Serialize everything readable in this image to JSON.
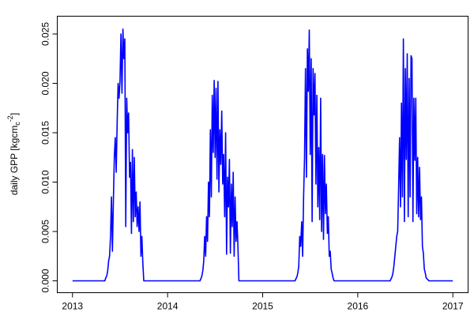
{
  "chart_data": {
    "type": "line",
    "title": "",
    "xlabel": "",
    "ylabel": "daily GPP [kgcm",
    "ylabel_sub": "c",
    "ylabel_exp": "-2",
    "ylabel_close": "]",
    "xlim": [
      2012.84,
      2017.16
    ],
    "ylim": [
      -0.0012,
      0.0268
    ],
    "x_ticks": [
      2013,
      2014,
      2015,
      2016,
      2017
    ],
    "x_tick_labels": [
      "2013",
      "2014",
      "2015",
      "2016",
      "2017"
    ],
    "y_ticks": [
      0,
      0.005,
      0.01,
      0.015,
      0.02,
      0.025
    ],
    "y_tick_labels": [
      "0.000",
      "0.005",
      "0.010",
      "0.015",
      "0.020",
      "0.025"
    ],
    "grid": false,
    "line_color": "#0000ff",
    "series": [
      {
        "seasons": [
          {
            "year": 2013,
            "x": [
              2013.34,
              2013.35,
              2013.36,
              2013.37,
              2013.38,
              2013.39,
              2013.4,
              2013.41,
              2013.42,
              2013.43,
              2013.44,
              2013.45,
              2013.46,
              2013.47,
              2013.48,
              2013.49,
              2013.5,
              2013.51,
              2013.52,
              2013.53,
              2013.54,
              2013.55,
              2013.56,
              2013.57,
              2013.58,
              2013.59,
              2013.6,
              2013.61,
              2013.62,
              2013.63,
              2013.64,
              2013.65,
              2013.66,
              2013.67,
              2013.68,
              2013.69,
              2013.7,
              2013.71,
              2013.72,
              2013.73,
              2013.74,
              2013.75
            ],
            "y": [
              0,
              0.0003,
              0.0005,
              0.001,
              0.002,
              0.0025,
              0.0045,
              0.0085,
              0.003,
              0.008,
              0.0125,
              0.0145,
              0.011,
              0.016,
              0.02,
              0.0185,
              0.0202,
              0.025,
              0.019,
              0.0255,
              0.0225,
              0.0245,
              0.0055,
              0.0185,
              0.015,
              0.017,
              0.0105,
              0.012,
              0.0048,
              0.0133,
              0.006,
              0.0125,
              0.0065,
              0.009,
              0.0055,
              0.0075,
              0.005,
              0.008,
              0.0025,
              0.0045,
              0.0018,
              0
            ]
          },
          {
            "year": 2014,
            "x": [
              2014.34,
              2014.35,
              2014.36,
              2014.37,
              2014.38,
              2014.39,
              2014.4,
              2014.41,
              2014.42,
              2014.43,
              2014.44,
              2014.45,
              2014.46,
              2014.47,
              2014.48,
              2014.49,
              2014.5,
              2014.51,
              2014.52,
              2014.53,
              2014.54,
              2014.55,
              2014.56,
              2014.57,
              2014.58,
              2014.59,
              2014.6,
              2014.61,
              2014.62,
              2014.63,
              2014.64,
              2014.65,
              2014.66,
              2014.67,
              2014.68,
              2014.69,
              2014.7,
              2014.71,
              2014.72,
              2014.73,
              2014.74,
              2014.75
            ],
            "y": [
              0,
              0.0002,
              0.0005,
              0.001,
              0.002,
              0.0045,
              0.0025,
              0.0065,
              0.004,
              0.01,
              0.0065,
              0.0153,
              0.0085,
              0.0188,
              0.013,
              0.0203,
              0.0125,
              0.0195,
              0.0103,
              0.0202,
              0.009,
              0.0153,
              0.0118,
              0.0172,
              0.0098,
              0.0128,
              0.0065,
              0.015,
              0.0027,
              0.0105,
              0.0075,
              0.0123,
              0.0028,
              0.0098,
              0.0055,
              0.011,
              0.0025,
              0.0085,
              0.004,
              0.006,
              0.0035,
              0
            ]
          },
          {
            "year": 2015,
            "x": [
              2015.34,
              2015.35,
              2015.36,
              2015.37,
              2015.38,
              2015.39,
              2015.4,
              2015.41,
              2015.42,
              2015.43,
              2015.44,
              2015.45,
              2015.46,
              2015.47,
              2015.48,
              2015.49,
              2015.5,
              2015.51,
              2015.52,
              2015.53,
              2015.54,
              2015.55,
              2015.56,
              2015.57,
              2015.58,
              2015.59,
              2015.6,
              2015.61,
              2015.62,
              2015.63,
              2015.64,
              2015.65,
              2015.66,
              2015.67,
              2015.68,
              2015.69,
              2015.7,
              2015.71,
              2015.72,
              2015.73,
              2015.74,
              2015.75
            ],
            "y": [
              0,
              0.0002,
              0.0004,
              0.0008,
              0.0015,
              0.0045,
              0.0035,
              0.006,
              0.0025,
              0.0085,
              0.0125,
              0.0215,
              0.0105,
              0.0235,
              0.0192,
              0.0254,
              0.0128,
              0.0225,
              0.006,
              0.0215,
              0.0168,
              0.021,
              0.0098,
              0.0188,
              0.0075,
              0.0135,
              0.0062,
              0.0185,
              0.005,
              0.0128,
              0.0042,
              0.0127,
              0.0068,
              0.0098,
              0.0048,
              0.0065,
              0.0025,
              0.003,
              0.0012,
              0.0008,
              0.0003,
              0
            ]
          },
          {
            "year": 2016,
            "x": [
              2016.34,
              2016.35,
              2016.36,
              2016.37,
              2016.38,
              2016.39,
              2016.4,
              2016.41,
              2016.42,
              2016.43,
              2016.44,
              2016.45,
              2016.46,
              2016.47,
              2016.48,
              2016.49,
              2016.5,
              2016.51,
              2016.52,
              2016.53,
              2016.54,
              2016.55,
              2016.56,
              2016.57,
              2016.58,
              2016.59,
              2016.6,
              2016.61,
              2016.62,
              2016.63,
              2016.64,
              2016.65,
              2016.66,
              2016.67,
              2016.68,
              2016.69,
              2016.7,
              2016.71,
              2016.72,
              2016.73,
              2016.74,
              2016.75
            ],
            "y": [
              0,
              0.0002,
              0.0004,
              0.0008,
              0.0015,
              0.0025,
              0.0035,
              0.0045,
              0.005,
              0.0095,
              0.0145,
              0.0075,
              0.018,
              0.0085,
              0.0245,
              0.006,
              0.0215,
              0.0123,
              0.023,
              0.0065,
              0.0205,
              0.0085,
              0.0228,
              0.0225,
              0.006,
              0.0185,
              0.0122,
              0.0185,
              0.0068,
              0.0125,
              0.0065,
              0.0115,
              0.0062,
              0.0085,
              0.0035,
              0.0028,
              0.0012,
              0.0008,
              0.0003,
              0.0002,
              0.0001,
              0
            ]
          }
        ],
        "start": [
          2013,
          0
        ],
        "end": [
          2017,
          0
        ]
      }
    ]
  }
}
